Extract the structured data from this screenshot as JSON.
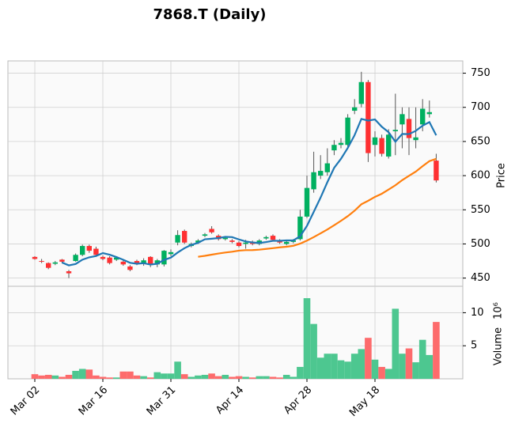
{
  "chart_data": {
    "type": "candlestick",
    "title": "7868.T (Daily)",
    "categories": [
      "Mar 02",
      null,
      null,
      null,
      null,
      null,
      null,
      null,
      null,
      null,
      "Mar 16",
      null,
      null,
      null,
      null,
      null,
      null,
      null,
      null,
      null,
      "Mar 31",
      null,
      null,
      null,
      null,
      null,
      null,
      null,
      null,
      null,
      "Apr 14",
      null,
      null,
      null,
      null,
      null,
      null,
      null,
      null,
      null,
      "Apr 28",
      null,
      null,
      null,
      null,
      null,
      null,
      null,
      null,
      null,
      "May 18",
      null,
      null,
      null,
      null,
      null,
      null,
      null,
      null,
      null
    ],
    "open": [
      481,
      475,
      472,
      471,
      477,
      460,
      475,
      484,
      497,
      493,
      481,
      480,
      477,
      474,
      467,
      475,
      472,
      481,
      470,
      470,
      485,
      502,
      519,
      497,
      502,
      512,
      522,
      512,
      507,
      505,
      502,
      500,
      503,
      500,
      508,
      512,
      505,
      500,
      503,
      507,
      540,
      580,
      600,
      605,
      637,
      645,
      645,
      695,
      705,
      737,
      645,
      655,
      628,
      665,
      675,
      683,
      652,
      675,
      690,
      622
    ],
    "high": [
      482,
      478,
      473,
      475,
      478,
      462,
      486,
      499,
      499,
      496,
      483,
      482,
      482,
      476,
      469,
      477,
      479,
      482,
      478,
      491,
      492,
      520,
      521,
      502,
      507,
      516,
      526,
      514,
      511,
      507,
      504,
      506,
      505,
      507,
      512,
      514,
      507,
      505,
      507,
      550,
      600,
      635,
      630,
      640,
      652,
      655,
      690,
      712,
      752,
      740,
      665,
      660,
      668,
      720,
      700,
      700,
      700,
      712,
      710,
      632
    ],
    "low": [
      477,
      472,
      463,
      469,
      472,
      450,
      474,
      482,
      487,
      481,
      476,
      470,
      475,
      468,
      460,
      469,
      468,
      466,
      466,
      467,
      482,
      498,
      500,
      495,
      500,
      510,
      515,
      505,
      505,
      501,
      495,
      493,
      498,
      498,
      506,
      504,
      500,
      498,
      501,
      505,
      538,
      575,
      595,
      600,
      630,
      640,
      642,
      690,
      700,
      620,
      628,
      628,
      625,
      630,
      640,
      630,
      640,
      665,
      685,
      590
    ],
    "close": [
      478,
      474,
      465,
      473,
      474,
      457,
      484,
      497,
      490,
      484,
      478,
      472,
      480,
      470,
      462,
      471,
      476,
      470,
      476,
      490,
      488,
      513,
      502,
      500,
      505,
      514,
      517,
      507,
      509,
      503,
      497,
      502,
      500,
      505,
      510,
      506,
      502,
      503,
      505,
      540,
      582,
      605,
      607,
      618,
      645,
      648,
      685,
      700,
      737,
      633,
      656,
      632,
      660,
      667,
      690,
      655,
      656,
      698,
      693,
      593
    ],
    "up_color": "#00b060",
    "down_color": "#fe3032",
    "ylim": [
      438,
      768
    ],
    "yticks": [
      450,
      500,
      550,
      600,
      650,
      700,
      750
    ],
    "y_label": "Price",
    "grid": true,
    "moving_averages": [
      {
        "color": "#1f77b4",
        "values": [
          null,
          null,
          null,
          null,
          472.8,
          468.6,
          470.6,
          477,
          480.4,
          482.4,
          486.6,
          484.2,
          480.8,
          476.8,
          472.4,
          471,
          471.8,
          469.8,
          471,
          476.6,
          480,
          487.4,
          493.8,
          498.6,
          501.6,
          506.8,
          507.6,
          508.6,
          510.4,
          510,
          506.6,
          503.6,
          502.2,
          501.4,
          502.8,
          504.6,
          504.6,
          505.2,
          505.2,
          511.2,
          526.4,
          547,
          567.8,
          590.4,
          611.4,
          624.6,
          640.6,
          659.2,
          683,
          680.6,
          682.2,
          671.6,
          663.6,
          649.6,
          661,
          660.8,
          665.6,
          673.2,
          678.4,
          659
        ]
      },
      {
        "color": "#ff7f0e",
        "values": [
          null,
          null,
          null,
          null,
          null,
          null,
          null,
          null,
          null,
          null,
          null,
          null,
          null,
          null,
          null,
          null,
          null,
          null,
          null,
          null,
          null,
          null,
          null,
          null,
          481.2,
          482.6,
          484.3,
          486,
          487.4,
          488.6,
          490.2,
          490.9,
          491,
          491.6,
          492.7,
          493.8,
          495,
          495.9,
          497.3,
          500.4,
          504.9,
          510,
          515.5,
          521.2,
          527.4,
          533.8,
          540.7,
          548.6,
          558.1,
          563.2,
          568.9,
          573.5,
          579.6,
          585.9,
          593.4,
          599.7,
          605.9,
          613.8,
          621.3,
          624.6
        ]
      }
    ],
    "volume": {
      "values": [
        0.7,
        0.5,
        0.6,
        0.5,
        0.3,
        0.6,
        1.2,
        1.5,
        1.4,
        0.5,
        0.3,
        0.2,
        0.2,
        1.1,
        1.1,
        0.5,
        0.4,
        0.2,
        1.0,
        0.8,
        0.8,
        2.6,
        0.7,
        0.3,
        0.5,
        0.6,
        0.8,
        0.4,
        0.6,
        0.3,
        0.4,
        0.3,
        0.2,
        0.4,
        0.4,
        0.3,
        0.2,
        0.6,
        0.3,
        1.8,
        12.2,
        8.3,
        3.2,
        3.8,
        3.8,
        2.8,
        2.6,
        3.8,
        4.5,
        6.2,
        2.9,
        1.8,
        1.5,
        10.6,
        3.8,
        4.6,
        2.5,
        5.9,
        3.6,
        8.6
      ],
      "ylim": [
        0,
        14
      ],
      "yticks": [
        5,
        10
      ],
      "label": "Volume",
      "exponent_label": "10⁶",
      "up_color": "#4dc790",
      "down_color": "#fd6b6c"
    }
  }
}
